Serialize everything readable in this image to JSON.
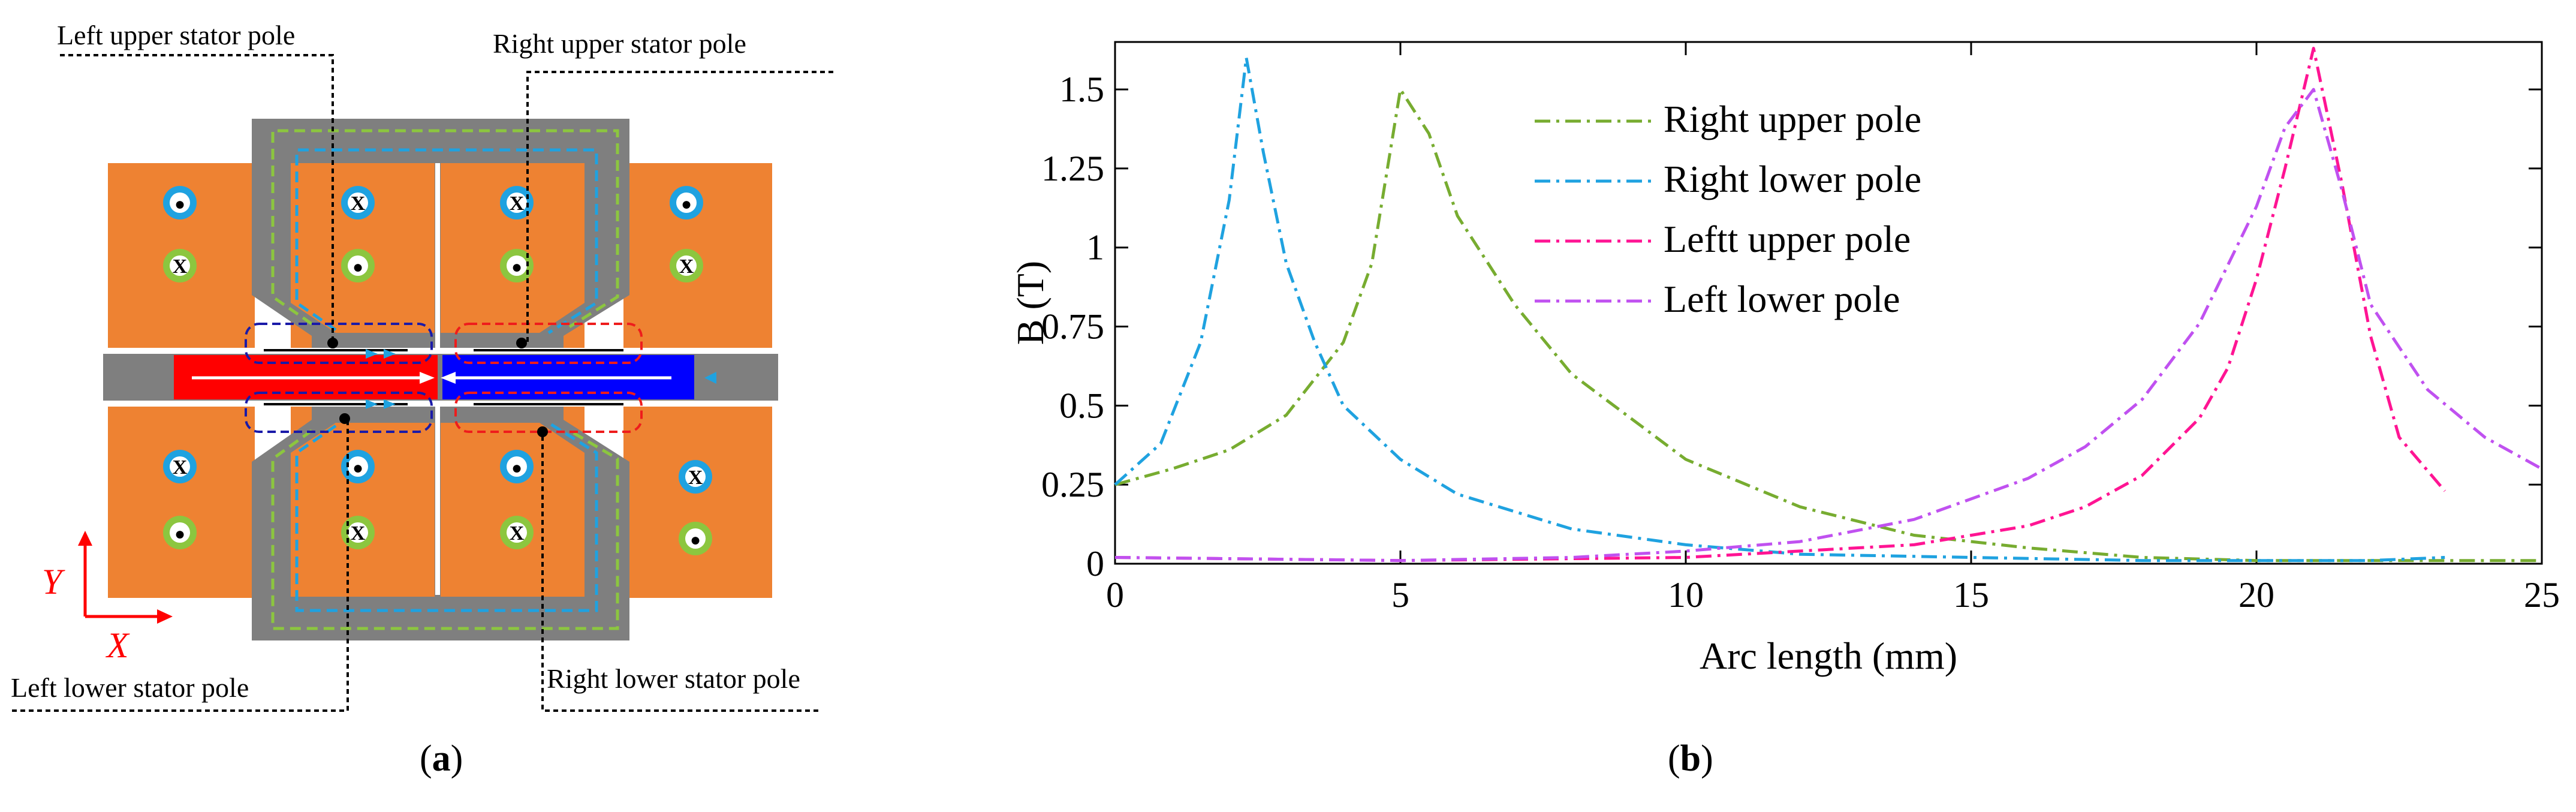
{
  "diagram": {
    "callouts": {
      "left_upper": "Left upper stator pole",
      "right_upper": "Right upper stator pole",
      "left_lower": "Left lower stator pole",
      "right_lower": "Right lower stator pole"
    },
    "axis_y": "Y",
    "axis_x": "X",
    "colors": {
      "coil": "#ee8232",
      "core": "#7f7f7f",
      "magnet_left": "#ff0000",
      "magnet_right": "#0000ff",
      "conductor_in": "#1fa2e0",
      "conductor_out": "#8cc63f",
      "axis": "#ff0000"
    },
    "conductor_marks": {
      "out": "●",
      "in": "X"
    }
  },
  "labels": {
    "a": "a",
    "b": "b"
  },
  "chart_data": {
    "type": "line",
    "xlabel": "Arc length (mm)",
    "ylabel": "B (T)",
    "xlim": [
      0,
      25
    ],
    "ylim": [
      0,
      1.65
    ],
    "xticks": [
      "0",
      "5",
      "10",
      "15",
      "20",
      "25"
    ],
    "yticks": [
      "0",
      "0.25",
      "0.5",
      "0.75",
      "1",
      "1.25",
      "1.5"
    ],
    "legend_position": "top-center",
    "series": [
      {
        "name": "Right upper pole",
        "color": "#77ac30",
        "x": [
          0,
          1,
          2,
          3,
          4,
          4.5,
          5,
          5.5,
          6,
          7,
          8,
          10,
          12,
          14,
          16,
          18,
          20,
          22,
          25
        ],
        "y": [
          0.25,
          0.3,
          0.36,
          0.47,
          0.7,
          0.95,
          1.5,
          1.36,
          1.1,
          0.82,
          0.6,
          0.33,
          0.18,
          0.09,
          0.05,
          0.02,
          0.01,
          0.01,
          0.01
        ]
      },
      {
        "name": "Right lower pole",
        "color": "#1fa2e0",
        "x": [
          0,
          0.8,
          1.5,
          2,
          2.3,
          2.6,
          3,
          3.5,
          4,
          5,
          6,
          8,
          10,
          12,
          15,
          18,
          20,
          22,
          23.3
        ],
        "y": [
          0.25,
          0.38,
          0.7,
          1.15,
          1.6,
          1.3,
          0.95,
          0.7,
          0.5,
          0.33,
          0.22,
          0.11,
          0.06,
          0.03,
          0.02,
          0.01,
          0.01,
          0.01,
          0.02
        ]
      },
      {
        "name": "Leftt upper pole",
        "color": "#ff1493",
        "x": [
          0,
          5,
          10,
          12,
          14,
          16,
          17,
          18,
          19,
          19.5,
          20,
          20.5,
          21,
          21.5,
          22,
          22.5,
          23.3
        ],
        "y": [
          0.02,
          0.01,
          0.02,
          0.04,
          0.06,
          0.12,
          0.18,
          0.28,
          0.46,
          0.62,
          0.9,
          1.25,
          1.63,
          1.2,
          0.72,
          0.4,
          0.23
        ]
      },
      {
        "name": "Left lower pole",
        "color": "#c051f0",
        "x": [
          0,
          5,
          8,
          10,
          12,
          14,
          16,
          17,
          18,
          19,
          20,
          20.5,
          21,
          21.5,
          22,
          23,
          24,
          25
        ],
        "y": [
          0.02,
          0.01,
          0.02,
          0.04,
          0.07,
          0.14,
          0.27,
          0.37,
          0.52,
          0.76,
          1.13,
          1.38,
          1.5,
          1.18,
          0.82,
          0.55,
          0.4,
          0.3
        ]
      }
    ]
  }
}
